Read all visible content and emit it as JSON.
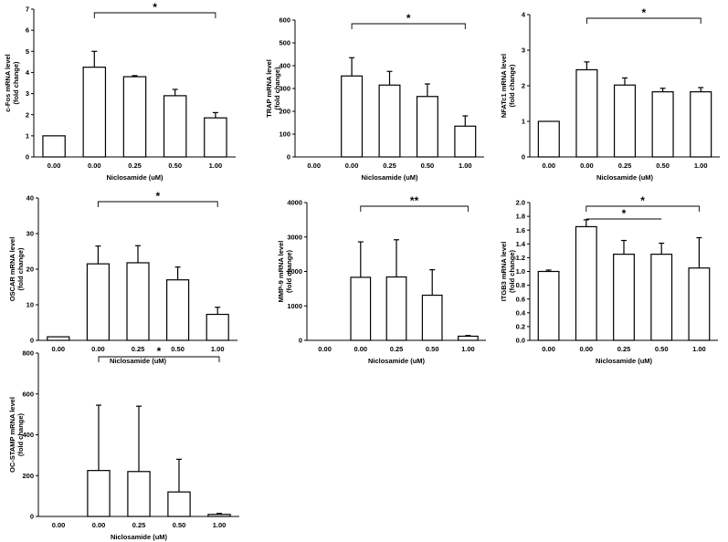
{
  "chart_data": [
    {
      "type": "bar",
      "title": "",
      "ylabel_line1": "c-Fos mRNA level",
      "ylabel_line2": "(fold change)",
      "xlabel": "Niclosamide (uM)",
      "categories": [
        "0.00",
        "0.00",
        "0.25",
        "0.50",
        "1.00"
      ],
      "values": [
        1.0,
        4.25,
        3.8,
        2.9,
        1.85
      ],
      "errors": [
        0,
        0.75,
        0.05,
        0.3,
        0.25
      ],
      "ylim": [
        0,
        7
      ],
      "yticks": [
        "0",
        "1",
        "2",
        "3",
        "4",
        "5",
        "6",
        "7"
      ],
      "significance": [
        {
          "from": 1,
          "to": 4,
          "label": "*"
        }
      ]
    },
    {
      "type": "bar",
      "title": "",
      "ylabel_line1": "TRAP mRNA level",
      "ylabel_line2": "(fold change)",
      "xlabel": "Niclosamide (uM)",
      "categories": [
        "0.00",
        "0.00",
        "0.25",
        "0.50",
        "1.00"
      ],
      "values": [
        0,
        355,
        315,
        265,
        135
      ],
      "errors": [
        0,
        80,
        60,
        55,
        45
      ],
      "ylim": [
        0,
        600
      ],
      "yticks": [
        "0",
        "100",
        "200",
        "300",
        "400",
        "500",
        "600"
      ],
      "significance": [
        {
          "from": 1,
          "to": 4,
          "label": "*"
        }
      ]
    },
    {
      "type": "bar",
      "title": "",
      "ylabel_line1": "NFATc1 mRNA level",
      "ylabel_line2": "(fold change)",
      "xlabel": "Niclosamide (uM)",
      "categories": [
        "0.00",
        "0.00",
        "0.25",
        "0.50",
        "1.00"
      ],
      "values": [
        1.0,
        2.45,
        2.02,
        1.83,
        1.83
      ],
      "errors": [
        0,
        0.22,
        0.2,
        0.1,
        0.12
      ],
      "ylim": [
        0,
        4
      ],
      "yticks": [
        "0",
        "1",
        "2",
        "3",
        "4"
      ],
      "significance": [
        {
          "from": 1,
          "to": 4,
          "label": "*"
        }
      ]
    },
    {
      "type": "bar",
      "title": "",
      "ylabel_line1": "OSCAR mRNA level",
      "ylabel_line2": "(fold change)",
      "xlabel": "Niclosamide (uM)",
      "categories": [
        "0.00",
        "0.00",
        "0.25",
        "0.50",
        "1.00"
      ],
      "values": [
        1.0,
        21.5,
        21.8,
        17.0,
        7.3
      ],
      "errors": [
        0,
        5.0,
        4.8,
        3.6,
        2.0
      ],
      "ylim": [
        0,
        40
      ],
      "yticks": [
        "0",
        "10",
        "20",
        "30",
        "40"
      ],
      "significance": [
        {
          "from": 1,
          "to": 4,
          "label": "*"
        }
      ]
    },
    {
      "type": "bar",
      "title": "",
      "ylabel_line1": "MMP-9 mRNA level",
      "ylabel_line2": "(fold change)",
      "xlabel": "Niclosamide (uM)",
      "categories": [
        "0.00",
        "0.00",
        "0.25",
        "0.50",
        "1.00"
      ],
      "values": [
        0,
        1830,
        1840,
        1310,
        120
      ],
      "errors": [
        0,
        1030,
        1080,
        740,
        20
      ],
      "ylim": [
        0,
        4000
      ],
      "yticks": [
        "0",
        "1000",
        "2000",
        "3000",
        "4000"
      ],
      "significance": [
        {
          "from": 1,
          "to": 4,
          "label": "**"
        }
      ]
    },
    {
      "type": "bar",
      "title": "",
      "ylabel_line1": "ITGB3 mRNA level",
      "ylabel_line2": "(fold change)",
      "xlabel": "Niclosamide (uM)",
      "categories": [
        "0.00",
        "0.00",
        "0.25",
        "0.50",
        "1.00"
      ],
      "values": [
        1.0,
        1.65,
        1.25,
        1.25,
        1.05
      ],
      "errors": [
        0.02,
        0.1,
        0.2,
        0.16,
        0.44
      ],
      "ylim": [
        0,
        2.0
      ],
      "yticks": [
        "0.0",
        "0.2",
        "0.4",
        "0.6",
        "0.8",
        "1.0",
        "1.2",
        "1.4",
        "1.6",
        "1.8",
        "2.0"
      ],
      "significance": [
        {
          "from": 1,
          "to": 4,
          "label": "*"
        },
        {
          "from": 1,
          "to": 3,
          "label": "*"
        }
      ]
    },
    {
      "type": "bar",
      "title": "",
      "ylabel_line1": "OC-STAMP mRNA level",
      "ylabel_line2": "(fold change)",
      "xlabel": "Niclosamide (uM)",
      "categories": [
        "0.00",
        "0.00",
        "0.25",
        "0.50",
        "1.00"
      ],
      "values": [
        0,
        225,
        220,
        120,
        10
      ],
      "errors": [
        0,
        320,
        320,
        160,
        5
      ],
      "ylim": [
        0,
        800
      ],
      "yticks": [
        "0",
        "200",
        "400",
        "600",
        "800"
      ],
      "significance": [
        {
          "from": 1,
          "to": 4,
          "label": "*"
        }
      ]
    }
  ]
}
